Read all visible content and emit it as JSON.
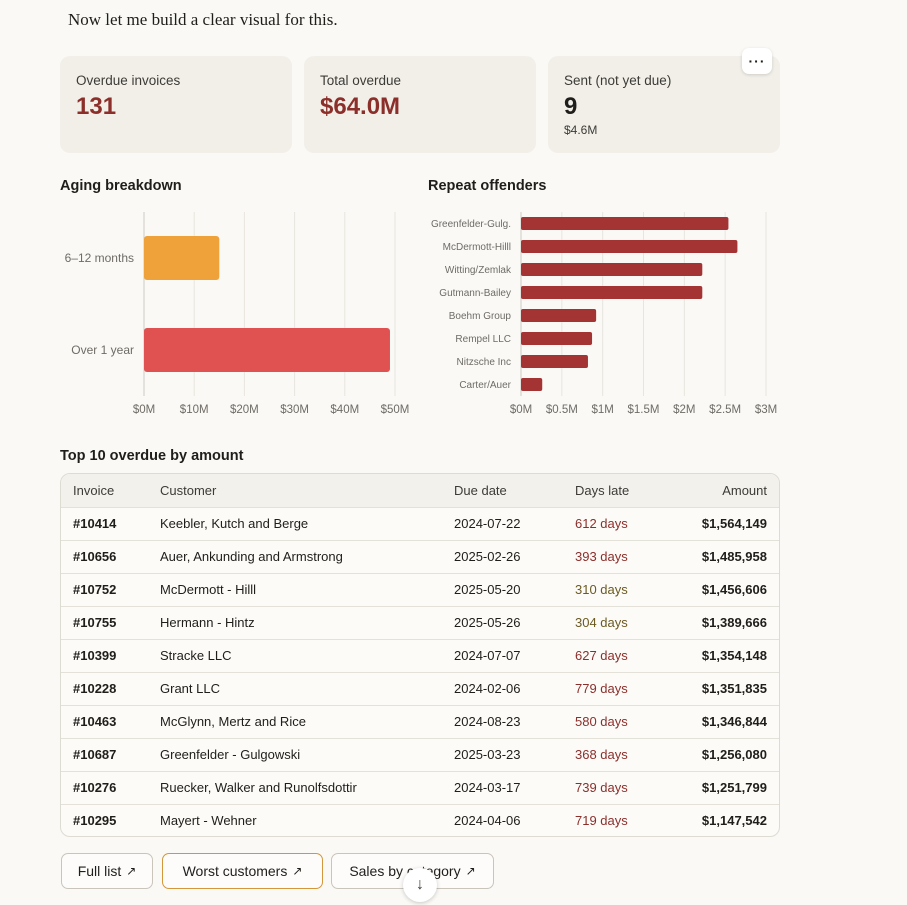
{
  "intro_text": "Now let me build a clear visual for this.",
  "cards": [
    {
      "label": "Overdue invoices",
      "value": "131"
    },
    {
      "label": "Total overdue",
      "value": "$64.0M"
    },
    {
      "label": "Sent (not yet due)",
      "value": "9",
      "sub": "$4.6M"
    }
  ],
  "more_icon": "···",
  "colors": {
    "accent_red": "#8c2f2b",
    "bar_orange": "#f0a23a",
    "bar_red": "#e05252",
    "bar_dark_red": "#a33433"
  },
  "chart_data": [
    {
      "type": "bar",
      "orientation": "horizontal",
      "title": "Aging breakdown",
      "categories": [
        "6–12 months",
        "Over 1 year"
      ],
      "values": [
        15,
        49
      ],
      "colors": [
        "#f0a23a",
        "#e05252"
      ],
      "xlim": [
        0,
        50
      ],
      "xticks": [
        "$0M",
        "$10M",
        "$20M",
        "$30M",
        "$40M",
        "$50M"
      ]
    },
    {
      "type": "bar",
      "orientation": "horizontal",
      "title": "Repeat offenders",
      "categories": [
        "Greenfelder-Gulg.",
        "McDermott-Hilll",
        "Witting/Zemlak",
        "Gutmann-Bailey",
        "Boehm Group",
        "Rempel LLC",
        "Nitzsche Inc",
        "Carter/Auer"
      ],
      "values": [
        2.54,
        2.65,
        2.22,
        2.22,
        0.92,
        0.87,
        0.82,
        0.26
      ],
      "color": "#a33433",
      "xlim": [
        0,
        3
      ],
      "xticks": [
        "$0M",
        "$0.5M",
        "$1M",
        "$1.5M",
        "$2M",
        "$2.5M",
        "$3M"
      ]
    }
  ],
  "table": {
    "title": "Top 10 overdue by amount",
    "headers": {
      "invoice": "Invoice",
      "customer": "Customer",
      "due": "Due date",
      "late": "Days late",
      "amount": "Amount"
    },
    "rows": [
      {
        "invoice": "#10414",
        "customer": "Keebler, Kutch and Berge",
        "due": "2024-07-22",
        "late": "612 days",
        "amount": "$1,564,149",
        "tone": "red"
      },
      {
        "invoice": "#10656",
        "customer": "Auer, Ankunding and Armstrong",
        "due": "2025-02-26",
        "late": "393 days",
        "amount": "$1,485,958",
        "tone": "red"
      },
      {
        "invoice": "#10752",
        "customer": "McDermott - Hilll",
        "due": "2025-05-20",
        "late": "310 days",
        "amount": "$1,456,606",
        "tone": "brown"
      },
      {
        "invoice": "#10755",
        "customer": "Hermann - Hintz",
        "due": "2025-05-26",
        "late": "304 days",
        "amount": "$1,389,666",
        "tone": "brown"
      },
      {
        "invoice": "#10399",
        "customer": "Stracke LLC",
        "due": "2024-07-07",
        "late": "627 days",
        "amount": "$1,354,148",
        "tone": "red"
      },
      {
        "invoice": "#10228",
        "customer": "Grant LLC",
        "due": "2024-02-06",
        "late": "779 days",
        "amount": "$1,351,835",
        "tone": "red"
      },
      {
        "invoice": "#10463",
        "customer": "McGlynn, Mertz and Rice",
        "due": "2024-08-23",
        "late": "580 days",
        "amount": "$1,346,844",
        "tone": "red"
      },
      {
        "invoice": "#10687",
        "customer": "Greenfelder - Gulgowski",
        "due": "2025-03-23",
        "late": "368 days",
        "amount": "$1,256,080",
        "tone": "red"
      },
      {
        "invoice": "#10276",
        "customer": "Ruecker, Walker and Runolfsdottir",
        "due": "2024-03-17",
        "late": "739 days",
        "amount": "$1,251,799",
        "tone": "red"
      },
      {
        "invoice": "#10295",
        "customer": "Mayert - Wehner",
        "due": "2024-04-06",
        "late": "719 days",
        "amount": "$1,147,542",
        "tone": "red"
      }
    ]
  },
  "buttons": [
    {
      "label": "Full list",
      "icon": "↗"
    },
    {
      "label": "Worst customers",
      "icon": "↗"
    },
    {
      "label": "Sales by category",
      "icon": "↗"
    }
  ],
  "scroll_icon": "↓"
}
